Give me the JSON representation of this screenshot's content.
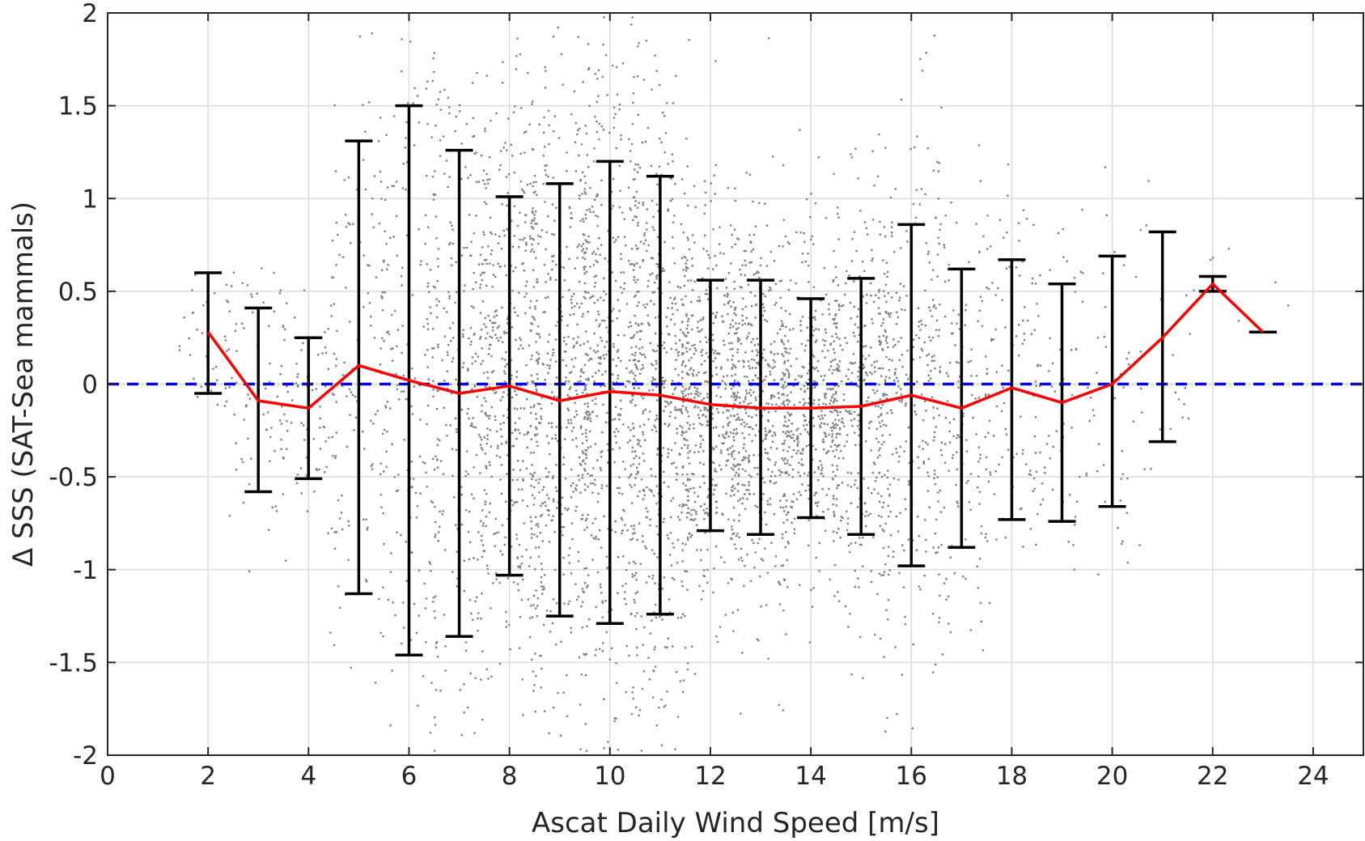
{
  "chart_data": {
    "type": "scatter",
    "xlabel": "Ascat Daily Wind Speed [m/s]",
    "ylabel": "Δ SSS (SAT-Sea mammals)",
    "xlim": [
      0,
      25
    ],
    "ylim": [
      -2,
      2
    ],
    "xticks": [
      0,
      2,
      4,
      6,
      8,
      10,
      12,
      14,
      16,
      18,
      20,
      22,
      24
    ],
    "xtick_labels": [
      "0",
      "2",
      "4",
      "6",
      "8",
      "10",
      "12",
      "14",
      "16",
      "18",
      "20",
      "22",
      "24"
    ],
    "yticks": [
      2,
      1.5,
      1,
      0.5,
      0,
      -0.5,
      -1,
      -1.5,
      -2
    ],
    "ytick_labels": [
      "2",
      "1.5",
      "1",
      "0.5",
      "0",
      "-0.5",
      "-1",
      "-1.5",
      "-2"
    ],
    "grid": true,
    "reference_line": {
      "y": 0,
      "style": "dashed",
      "color": "#0000ff"
    },
    "scatter": {
      "color": "#808080",
      "description": "dense cloud of individual comparison points, densest between 8 and 15 m/s and within about -1 to 1"
    },
    "mean_line": {
      "color": "#ff0000",
      "x": [
        2,
        3,
        4,
        5,
        6,
        7,
        8,
        9,
        10,
        11,
        12,
        13,
        14,
        15,
        16,
        17,
        18,
        19,
        20,
        21,
        22,
        23
      ],
      "y": [
        0.28,
        -0.09,
        -0.13,
        0.1,
        0.02,
        -0.05,
        -0.01,
        -0.09,
        -0.04,
        -0.06,
        -0.11,
        -0.13,
        -0.13,
        -0.12,
        -0.06,
        -0.13,
        -0.02,
        -0.1,
        0.0,
        0.25,
        0.54,
        0.28
      ]
    },
    "error_bars": {
      "color": "#000000",
      "x": [
        2,
        3,
        4,
        5,
        6,
        7,
        8,
        9,
        10,
        11,
        12,
        13,
        14,
        15,
        16,
        17,
        18,
        19,
        20,
        21,
        22,
        23
      ],
      "upper": [
        0.6,
        0.41,
        0.25,
        1.31,
        1.5,
        1.26,
        1.01,
        1.08,
        1.2,
        1.12,
        0.56,
        0.56,
        0.46,
        0.57,
        0.86,
        0.62,
        0.67,
        0.54,
        0.69,
        0.82,
        0.58,
        0.28
      ],
      "lower": [
        -0.05,
        -0.58,
        -0.51,
        -1.13,
        -1.46,
        -1.36,
        -1.03,
        -1.25,
        -1.29,
        -1.24,
        -0.79,
        -0.81,
        -0.72,
        -0.81,
        -0.98,
        -0.88,
        -0.73,
        -0.74,
        -0.66,
        -0.31,
        0.5,
        0.28
      ]
    }
  }
}
